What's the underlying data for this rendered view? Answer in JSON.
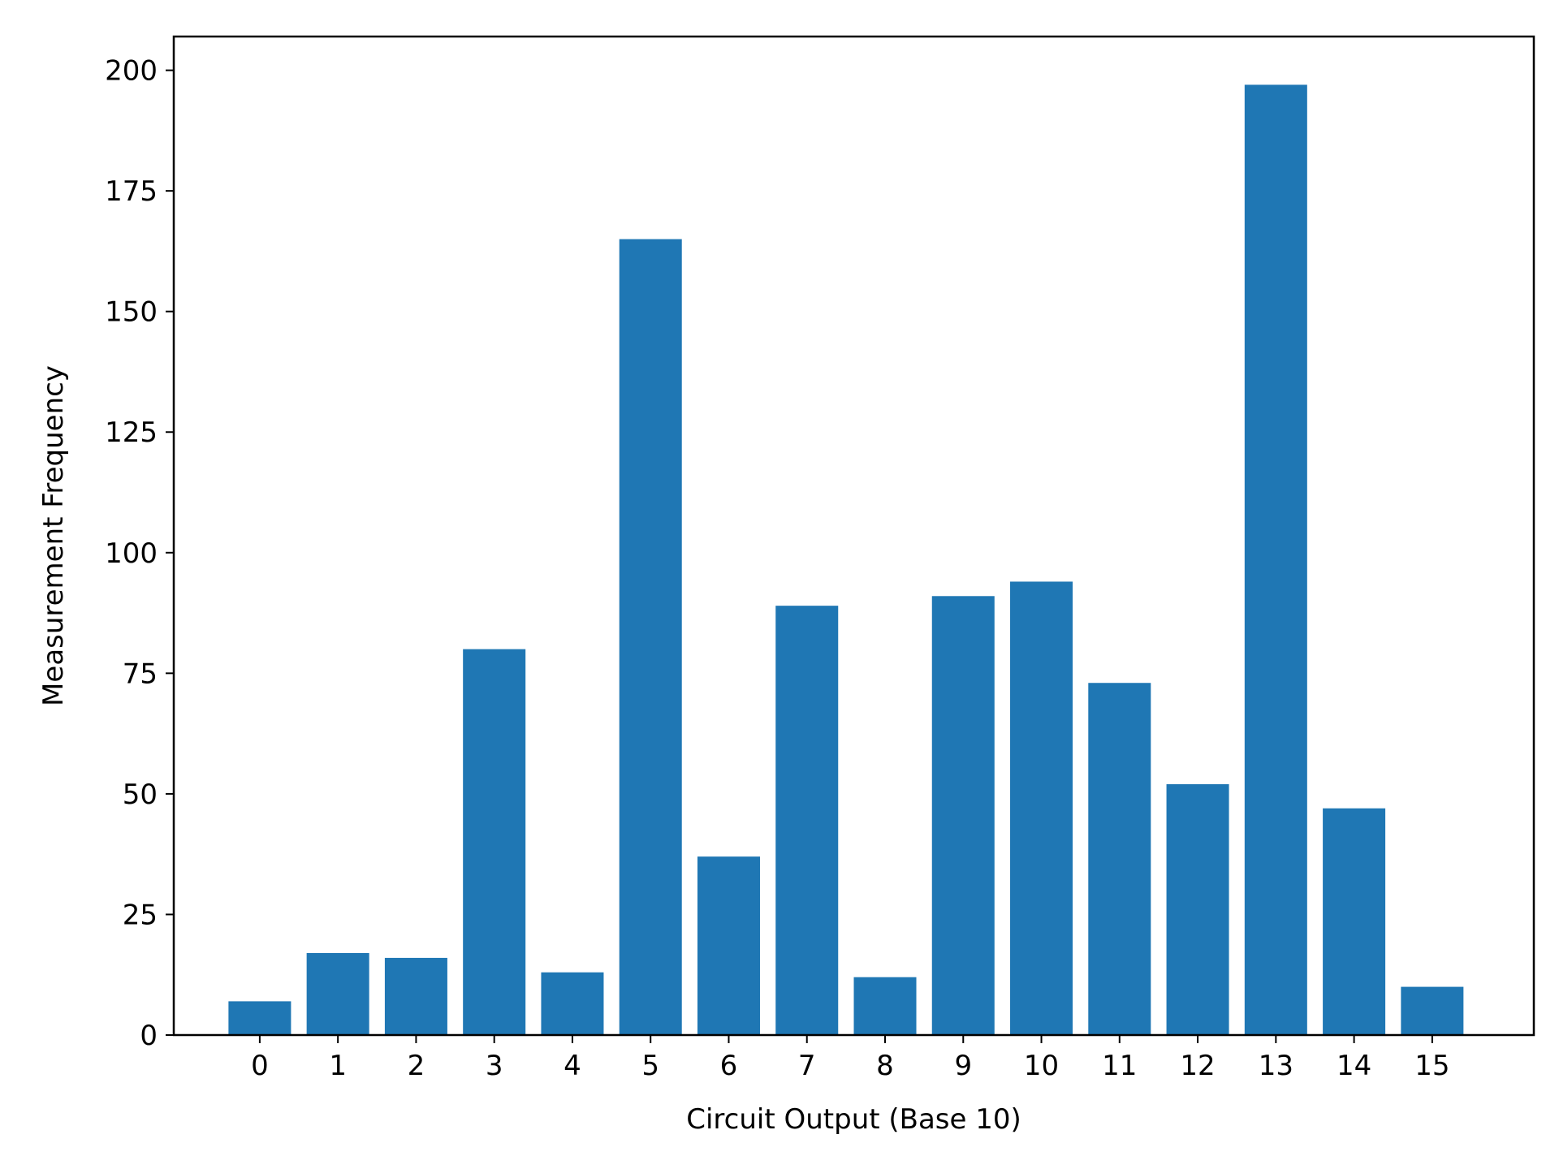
{
  "chart_data": {
    "type": "bar",
    "title": "",
    "xlabel": "Circuit Output (Base 10)",
    "ylabel": "Measurement Frequency",
    "categories": [
      "0",
      "1",
      "2",
      "3",
      "4",
      "5",
      "6",
      "7",
      "8",
      "9",
      "10",
      "11",
      "12",
      "13",
      "14",
      "15"
    ],
    "values": [
      7,
      17,
      16,
      80,
      13,
      165,
      37,
      89,
      12,
      91,
      94,
      73,
      52,
      197,
      47,
      10
    ],
    "ylim": [
      0,
      207
    ],
    "xlim": [
      -1.1,
      16.3
    ],
    "yticks": [
      0,
      25,
      50,
      75,
      100,
      125,
      150,
      175,
      200
    ],
    "grid": false,
    "bar_color": "#1f77b4"
  }
}
